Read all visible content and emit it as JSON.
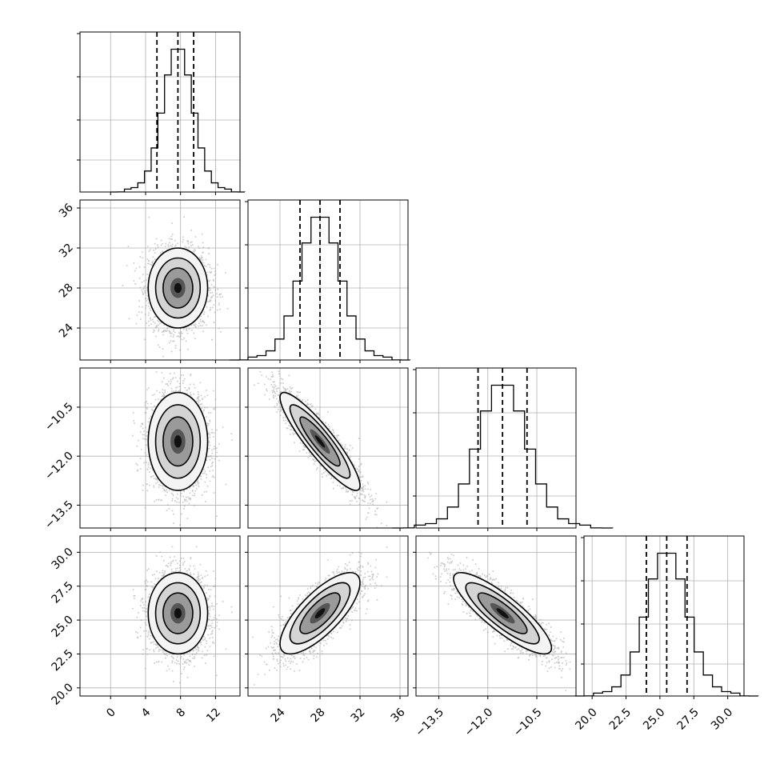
{
  "chart_data": {
    "type": "scatter",
    "kind": "corner-plot",
    "parameters": [
      {
        "index": 0,
        "label": "",
        "range": [
          -3.5,
          14.8
        ],
        "ticks": [
          0,
          4,
          8,
          12
        ],
        "tick_labels": [
          "0",
          "4",
          "8",
          "12"
        ],
        "quantiles": [
          5.3,
          7.7,
          9.5
        ],
        "mean": 7.7,
        "sd": 1.7
      },
      {
        "index": 1,
        "label": "",
        "range": [
          20.8,
          36.8
        ],
        "ticks": [
          24,
          28,
          32,
          36
        ],
        "tick_labels": [
          "24",
          "28",
          "32",
          "36"
        ],
        "quantiles": [
          26.0,
          28.0,
          30.0
        ],
        "mean": 28.0,
        "sd": 2.0
      },
      {
        "index": 2,
        "label": "",
        "range": [
          -14.2,
          -9.3
        ],
        "ticks": [
          -13.5,
          -12.0,
          -10.5
        ],
        "tick_labels": [
          "−13.5",
          "−12.0",
          "−10.5"
        ],
        "quantiles": [
          -12.3,
          -11.55,
          -10.8
        ],
        "mean": -11.55,
        "sd": 0.75
      },
      {
        "index": 3,
        "label": "",
        "range": [
          19.4,
          31.2
        ],
        "ticks": [
          20.0,
          22.5,
          25.0,
          27.5,
          30.0
        ],
        "tick_labels": [
          "20.0",
          "22.5",
          "25.0",
          "27.5",
          "30.0"
        ],
        "quantiles": [
          24.0,
          25.5,
          27.0
        ],
        "mean": 25.5,
        "sd": 1.5
      }
    ],
    "correlations": [
      {
        "x": 0,
        "y": 1,
        "rho": 0.0
      },
      {
        "x": 0,
        "y": 2,
        "rho": 0.0
      },
      {
        "x": 1,
        "y": 2,
        "rho": -0.9
      },
      {
        "x": 0,
        "y": 3,
        "rho": 0.0
      },
      {
        "x": 1,
        "y": 3,
        "rho": 0.75
      },
      {
        "x": 2,
        "y": 3,
        "rho": -0.85
      }
    ],
    "histogram": {
      "bins": 20,
      "style": "step"
    },
    "contour_levels_sigma": [
      0.5,
      1.0,
      1.5,
      2.0
    ],
    "grid": true,
    "colors": {
      "points": "#9a9a9a",
      "density": "#000000",
      "lines": "#000000",
      "grid": "#b0b0b0"
    }
  }
}
